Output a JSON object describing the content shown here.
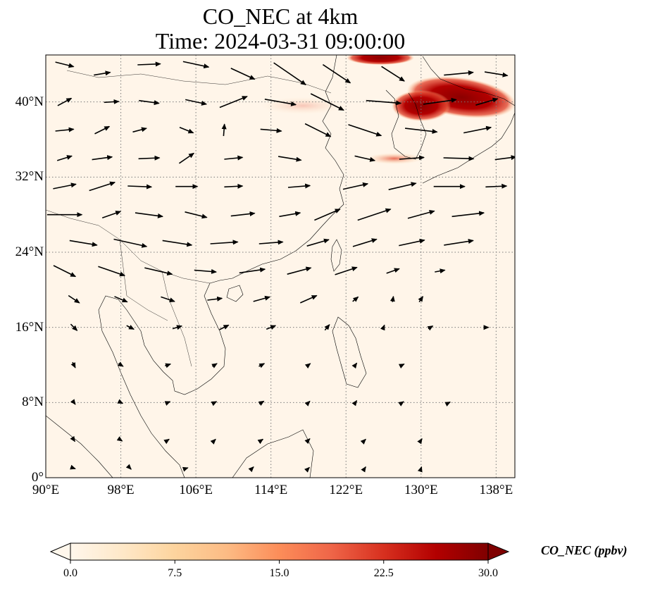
{
  "title": {
    "line1": "CO_NEC at 4km",
    "line2": "Time: 2024-03-31 09:00:00"
  },
  "map": {
    "lon_range": [
      90,
      140
    ],
    "lat_range": [
      0,
      45
    ],
    "lon_ticks": [
      {
        "value": 90,
        "label": "90°E"
      },
      {
        "value": 98,
        "label": "98°E"
      },
      {
        "value": 106,
        "label": "106°E"
      },
      {
        "value": 114,
        "label": "114°E"
      },
      {
        "value": 122,
        "label": "122°E"
      },
      {
        "value": 130,
        "label": "130°E"
      },
      {
        "value": 138,
        "label": "138°E"
      }
    ],
    "lat_ticks": [
      {
        "value": 0,
        "label": "0°"
      },
      {
        "value": 8,
        "label": "8°N"
      },
      {
        "value": 16,
        "label": "16°N"
      },
      {
        "value": 24,
        "label": "24°N"
      },
      {
        "value": 32,
        "label": "32°N"
      },
      {
        "value": 40,
        "label": "40°N"
      }
    ],
    "gridlines": true,
    "background_color": "#fff5e9",
    "plume_colors": [
      "#8b0000",
      "#a50f0f",
      "#c0321d",
      "#e34a33",
      "#fc8d59",
      "#fdbb84"
    ],
    "high_concentration_areas": [
      {
        "region": "Northeast China / Sea of Japan",
        "lon": [
          129,
          139
        ],
        "lat": [
          37,
          43
        ],
        "level": 30
      },
      {
        "region": "Northern Yellow Sea / Liaoning",
        "lon": [
          125,
          131
        ],
        "lat": [
          36,
          41
        ],
        "level": 22
      },
      {
        "region": "Northern boundary near 126°E",
        "lon": [
          123,
          129
        ],
        "lat": [
          44,
          45
        ],
        "level": 26
      }
    ]
  },
  "wind_vectors": [
    {
      "lon": 92,
      "lat": 44,
      "u": 2.0,
      "v": -0.5
    },
    {
      "lon": 96,
      "lat": 43,
      "u": 1.8,
      "v": 0.3
    },
    {
      "lon": 101,
      "lat": 44,
      "u": 2.5,
      "v": 0.1
    },
    {
      "lon": 106,
      "lat": 44,
      "u": 2.8,
      "v": -0.6
    },
    {
      "lon": 111,
      "lat": 43,
      "u": 2.6,
      "v": -1.2
    },
    {
      "lon": 116,
      "lat": 43,
      "u": 3.5,
      "v": -2.4
    },
    {
      "lon": 121,
      "lat": 43,
      "u": 3.0,
      "v": -2.0
    },
    {
      "lon": 127,
      "lat": 43,
      "u": 2.5,
      "v": -1.6
    },
    {
      "lon": 134,
      "lat": 43,
      "u": 3.2,
      "v": 0.3
    },
    {
      "lon": 138,
      "lat": 43,
      "u": 2.5,
      "v": -0.4
    },
    {
      "lon": 92,
      "lat": 40,
      "u": 1.5,
      "v": 0.8
    },
    {
      "lon": 97,
      "lat": 40,
      "u": 1.6,
      "v": 0.1
    },
    {
      "lon": 101,
      "lat": 40,
      "u": 2.2,
      "v": -0.3
    },
    {
      "lon": 106,
      "lat": 40,
      "u": 2.3,
      "v": -0.5
    },
    {
      "lon": 110,
      "lat": 40,
      "u": 3.0,
      "v": 1.2
    },
    {
      "lon": 115,
      "lat": 40,
      "u": 3.4,
      "v": -0.6
    },
    {
      "lon": 120,
      "lat": 40,
      "u": 3.6,
      "v": -1.8
    },
    {
      "lon": 126,
      "lat": 40,
      "u": 3.8,
      "v": -0.3
    },
    {
      "lon": 132,
      "lat": 40,
      "u": 3.6,
      "v": 0.5
    },
    {
      "lon": 137,
      "lat": 40,
      "u": 2.4,
      "v": 0.7
    },
    {
      "lon": 92,
      "lat": 37,
      "u": 2.0,
      "v": 0.2
    },
    {
      "lon": 96,
      "lat": 37,
      "u": 1.6,
      "v": 0.8
    },
    {
      "lon": 100,
      "lat": 37,
      "u": 1.5,
      "v": 0.4
    },
    {
      "lon": 105,
      "lat": 37,
      "u": 1.5,
      "v": -0.6
    },
    {
      "lon": 109,
      "lat": 37,
      "u": 0.1,
      "v": 1.3
    },
    {
      "lon": 114,
      "lat": 37,
      "u": 2.3,
      "v": -0.2
    },
    {
      "lon": 119,
      "lat": 37,
      "u": 2.8,
      "v": -1.4
    },
    {
      "lon": 124,
      "lat": 37,
      "u": 3.6,
      "v": -1.2
    },
    {
      "lon": 130,
      "lat": 37,
      "u": 3.5,
      "v": -0.4
    },
    {
      "lon": 136,
      "lat": 37,
      "u": 3.0,
      "v": 0.6
    },
    {
      "lon": 92,
      "lat": 34,
      "u": 1.6,
      "v": 0.5
    },
    {
      "lon": 96,
      "lat": 34,
      "u": 2.2,
      "v": 0.3
    },
    {
      "lon": 101,
      "lat": 34,
      "u": 2.3,
      "v": 0.1
    },
    {
      "lon": 105,
      "lat": 34,
      "u": 1.6,
      "v": 1.1
    },
    {
      "lon": 110,
      "lat": 34,
      "u": 2.0,
      "v": 0.2
    },
    {
      "lon": 116,
      "lat": 34,
      "u": 2.5,
      "v": -0.4
    },
    {
      "lon": 124,
      "lat": 34,
      "u": 2.2,
      "v": -0.5
    },
    {
      "lon": 129,
      "lat": 34,
      "u": 2.7,
      "v": 0.2
    },
    {
      "lon": 134,
      "lat": 34,
      "u": 3.3,
      "v": -0.1
    },
    {
      "lon": 139,
      "lat": 34,
      "u": 2.3,
      "v": 0.3
    },
    {
      "lon": 92,
      "lat": 31,
      "u": 2.5,
      "v": 0.5
    },
    {
      "lon": 96,
      "lat": 31,
      "u": 2.8,
      "v": 0.9
    },
    {
      "lon": 100,
      "lat": 31,
      "u": 2.6,
      "v": -0.1
    },
    {
      "lon": 105,
      "lat": 31,
      "u": 2.4,
      "v": 0.0
    },
    {
      "lon": 110,
      "lat": 31,
      "u": 2.0,
      "v": 0.1
    },
    {
      "lon": 117,
      "lat": 31,
      "u": 2.4,
      "v": 0.2
    },
    {
      "lon": 123,
      "lat": 31,
      "u": 2.7,
      "v": 0.6
    },
    {
      "lon": 128,
      "lat": 31,
      "u": 3.0,
      "v": 0.7
    },
    {
      "lon": 133,
      "lat": 31,
      "u": 3.4,
      "v": 0.0
    },
    {
      "lon": 138,
      "lat": 31,
      "u": 2.3,
      "v": 0.1
    },
    {
      "lon": 92,
      "lat": 28,
      "u": 3.8,
      "v": 0.0
    },
    {
      "lon": 97,
      "lat": 28,
      "u": 2.0,
      "v": 0.7
    },
    {
      "lon": 101,
      "lat": 28,
      "u": 3.0,
      "v": -0.4
    },
    {
      "lon": 106,
      "lat": 28,
      "u": 2.4,
      "v": -0.6
    },
    {
      "lon": 111,
      "lat": 28,
      "u": 2.6,
      "v": 0.3
    },
    {
      "lon": 116,
      "lat": 28,
      "u": 2.3,
      "v": 0.4
    },
    {
      "lon": 120,
      "lat": 28,
      "u": 2.8,
      "v": 1.2
    },
    {
      "lon": 125,
      "lat": 28,
      "u": 3.6,
      "v": 1.2
    },
    {
      "lon": 130,
      "lat": 28,
      "u": 2.9,
      "v": 0.8
    },
    {
      "lon": 135,
      "lat": 28,
      "u": 3.5,
      "v": 0.4
    },
    {
      "lon": 94,
      "lat": 25,
      "u": 3.0,
      "v": -0.5
    },
    {
      "lon": 99,
      "lat": 25,
      "u": 3.6,
      "v": -0.8
    },
    {
      "lon": 104,
      "lat": 25,
      "u": 3.2,
      "v": -0.5
    },
    {
      "lon": 109,
      "lat": 25,
      "u": 3.0,
      "v": 0.2
    },
    {
      "lon": 114,
      "lat": 25,
      "u": 2.6,
      "v": 0.2
    },
    {
      "lon": 119,
      "lat": 25,
      "u": 2.4,
      "v": 0.7
    },
    {
      "lon": 124,
      "lat": 25,
      "u": 2.6,
      "v": 0.8
    },
    {
      "lon": 129,
      "lat": 25,
      "u": 2.8,
      "v": 0.6
    },
    {
      "lon": 134,
      "lat": 25,
      "u": 3.2,
      "v": 0.5
    },
    {
      "lon": 92,
      "lat": 22,
      "u": 2.4,
      "v": -1.2
    },
    {
      "lon": 97,
      "lat": 22,
      "u": 2.9,
      "v": -1.0
    },
    {
      "lon": 102,
      "lat": 22,
      "u": 3.0,
      "v": -0.7
    },
    {
      "lon": 107,
      "lat": 22,
      "u": 2.4,
      "v": -0.2
    },
    {
      "lon": 112,
      "lat": 22,
      "u": 2.8,
      "v": 0.4
    },
    {
      "lon": 117,
      "lat": 22,
      "u": 2.6,
      "v": 0.7
    },
    {
      "lon": 122,
      "lat": 22,
      "u": 2.4,
      "v": 0.8
    },
    {
      "lon": 127,
      "lat": 22,
      "u": 1.4,
      "v": 0.5
    },
    {
      "lon": 132,
      "lat": 22,
      "u": 1.1,
      "v": 0.2
    },
    {
      "lon": 93,
      "lat": 19,
      "u": 1.2,
      "v": -0.8
    },
    {
      "lon": 98,
      "lat": 19,
      "u": 1.4,
      "v": -0.6
    },
    {
      "lon": 103,
      "lat": 19,
      "u": 1.5,
      "v": -0.5
    },
    {
      "lon": 108,
      "lat": 19,
      "u": 1.6,
      "v": 0.2
    },
    {
      "lon": 113,
      "lat": 19,
      "u": 1.8,
      "v": 0.5
    },
    {
      "lon": 118,
      "lat": 19,
      "u": 1.8,
      "v": 0.8
    },
    {
      "lon": 123,
      "lat": 19,
      "u": 0.6,
      "v": 0.5
    },
    {
      "lon": 127,
      "lat": 19,
      "u": 0.1,
      "v": 0.6
    },
    {
      "lon": 130,
      "lat": 19,
      "u": 0.4,
      "v": 0.6
    },
    {
      "lon": 93,
      "lat": 16,
      "u": 0.7,
      "v": -0.7
    },
    {
      "lon": 99,
      "lat": 16,
      "u": 0.8,
      "v": -0.4
    },
    {
      "lon": 104,
      "lat": 16,
      "u": 1.0,
      "v": 0.3
    },
    {
      "lon": 109,
      "lat": 16,
      "u": 1.0,
      "v": 0.5
    },
    {
      "lon": 114,
      "lat": 16,
      "u": 1.0,
      "v": 0.4
    },
    {
      "lon": 120,
      "lat": 16,
      "u": 0.5,
      "v": 0.6
    },
    {
      "lon": 126,
      "lat": 16,
      "u": 0.2,
      "v": 0.5
    },
    {
      "lon": 131,
      "lat": 16,
      "u": 0.5,
      "v": 0.3
    },
    {
      "lon": 137,
      "lat": 16,
      "u": 0.4,
      "v": 0.0
    },
    {
      "lon": 93,
      "lat": 12,
      "u": 0.3,
      "v": -0.6
    },
    {
      "lon": 98,
      "lat": 12,
      "u": 0.5,
      "v": -0.3
    },
    {
      "lon": 103,
      "lat": 12,
      "u": 0.6,
      "v": 0.2
    },
    {
      "lon": 108,
      "lat": 12,
      "u": 0.5,
      "v": 0.3
    },
    {
      "lon": 113,
      "lat": 12,
      "u": 0.6,
      "v": 0.3
    },
    {
      "lon": 118,
      "lat": 12,
      "u": 0.4,
      "v": 0.3
    },
    {
      "lon": 123,
      "lat": 12,
      "u": 0.3,
      "v": 0.4
    },
    {
      "lon": 128,
      "lat": 12,
      "u": 0.4,
      "v": 0.2
    },
    {
      "lon": 93,
      "lat": 8,
      "u": 0.3,
      "v": -0.4
    },
    {
      "lon": 98,
      "lat": 8,
      "u": 0.4,
      "v": -0.2
    },
    {
      "lon": 103,
      "lat": 8,
      "u": 0.5,
      "v": 0.2
    },
    {
      "lon": 108,
      "lat": 8,
      "u": 0.4,
      "v": 0.2
    },
    {
      "lon": 113,
      "lat": 8,
      "u": 0.5,
      "v": 0.3
    },
    {
      "lon": 118,
      "lat": 8,
      "u": 0.3,
      "v": 0.3
    },
    {
      "lon": 123,
      "lat": 8,
      "u": 0.3,
      "v": 0.4
    },
    {
      "lon": 128,
      "lat": 8,
      "u": 0.3,
      "v": 0.2
    },
    {
      "lon": 133,
      "lat": 8,
      "u": 0.2,
      "v": 0.1
    },
    {
      "lon": 93,
      "lat": 4,
      "u": 0.2,
      "v": -0.3
    },
    {
      "lon": 98,
      "lat": 4,
      "u": 0.3,
      "v": -0.2
    },
    {
      "lon": 103,
      "lat": 4,
      "u": 0.3,
      "v": 0.2
    },
    {
      "lon": 108,
      "lat": 4,
      "u": 0.2,
      "v": 0.2
    },
    {
      "lon": 113,
      "lat": 4,
      "u": 0.3,
      "v": 0.2
    },
    {
      "lon": 118,
      "lat": 4,
      "u": 0.3,
      "v": 0.3
    },
    {
      "lon": 124,
      "lat": 4,
      "u": 0.2,
      "v": 0.2
    },
    {
      "lon": 130,
      "lat": 4,
      "u": 0.2,
      "v": 0.3
    },
    {
      "lon": 93,
      "lat": 1,
      "u": 0.3,
      "v": -0.1
    },
    {
      "lon": 99,
      "lat": 1,
      "u": 0.2,
      "v": -0.2
    },
    {
      "lon": 105,
      "lat": 1,
      "u": 0.3,
      "v": 0.1
    },
    {
      "lon": 112,
      "lat": 1,
      "u": 0.3,
      "v": 0.3
    },
    {
      "lon": 118,
      "lat": 1,
      "u": 0.2,
      "v": 0.2
    },
    {
      "lon": 124,
      "lat": 1,
      "u": 0.2,
      "v": 0.3
    },
    {
      "lon": 130,
      "lat": 1,
      "u": 0.1,
      "v": 0.3
    }
  ],
  "colorbar": {
    "label": "CO_NEC (ppbv)",
    "min": 0.0,
    "max": 30.0,
    "extend": "both",
    "colormap": "OrRd",
    "stops": [
      "#fff7ec",
      "#fee8c8",
      "#fdd49e",
      "#fdbb84",
      "#fc8d59",
      "#ef6548",
      "#d7301f",
      "#b30000",
      "#7f0000"
    ],
    "ticks": [
      {
        "value": 0.0,
        "label": "0.0"
      },
      {
        "value": 7.5,
        "label": "7.5"
      },
      {
        "value": 15.0,
        "label": "15.0"
      },
      {
        "value": 22.5,
        "label": "22.5"
      },
      {
        "value": 30.0,
        "label": "30.0"
      }
    ]
  }
}
